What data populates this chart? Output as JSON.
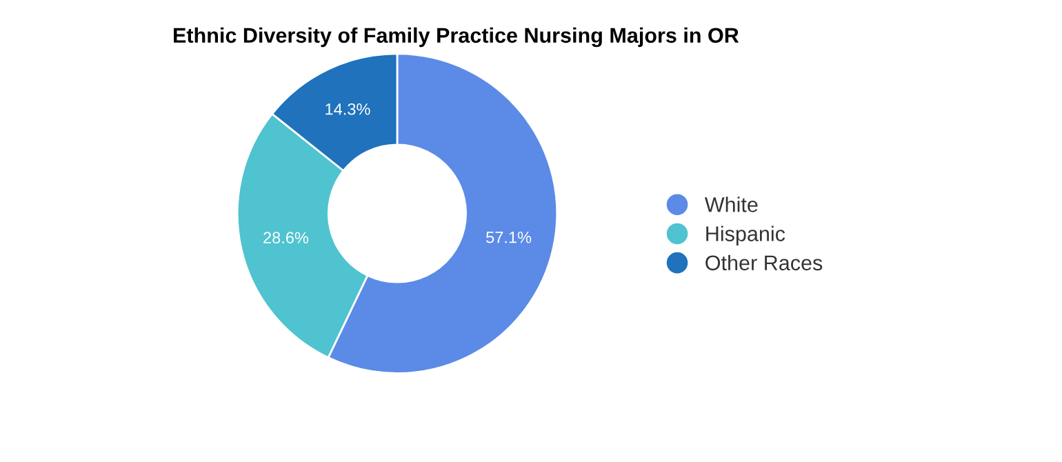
{
  "chart_data": {
    "type": "donut",
    "title": "Ethnic Diversity of Family Practice Nursing Majors in OR",
    "categories": [
      "White",
      "Hispanic",
      "Other Races"
    ],
    "values": [
      57.1,
      28.6,
      14.3
    ],
    "colors": [
      "#5b8be6",
      "#4fc3cf",
      "#1f72bb"
    ],
    "value_labels": [
      "57.1%",
      "28.6%",
      "14.3%"
    ],
    "legend": "right"
  }
}
